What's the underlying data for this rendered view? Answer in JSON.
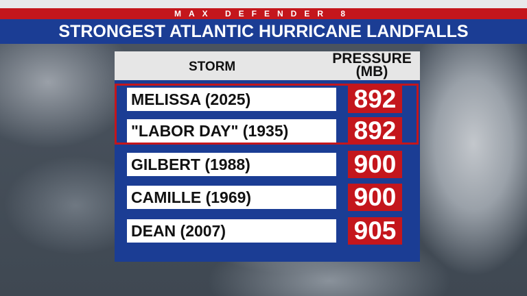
{
  "brand": "MAX DEFENDER 8",
  "title": "STRONGEST ATLANTIC HURRICANE LANDFALLS",
  "table": {
    "headers": {
      "storm": "STORM",
      "pressure": "PRESSURE",
      "pressure_unit": "(MB)"
    },
    "rows": [
      {
        "storm": "MELISSA (2025)",
        "pressure": "892"
      },
      {
        "storm": "\"LABOR DAY\" (1935)",
        "pressure": "892"
      },
      {
        "storm": "GILBERT (1988)",
        "pressure": "900"
      },
      {
        "storm": "CAMILLE (1969)",
        "pressure": "900"
      },
      {
        "storm": "DEAN (2007)",
        "pressure": "905"
      }
    ]
  },
  "colors": {
    "brand_red": "#c4161c",
    "title_blue": "#1b3d94",
    "header_gray": "#e6e6e6"
  }
}
